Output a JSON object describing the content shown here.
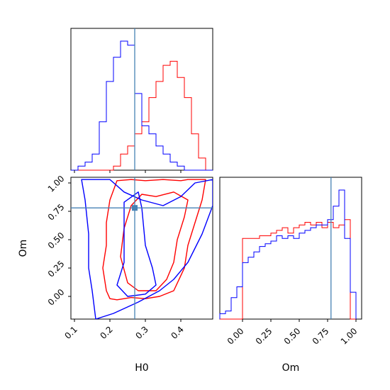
{
  "colors": {
    "series_red": "#ff0000",
    "series_blue": "#0000ff",
    "truth": "#4682b4",
    "axis": "#000000"
  },
  "chart_data": {
    "type": "corner",
    "parameters": [
      "H0",
      "Om"
    ],
    "truth": {
      "H0": 0.27,
      "Om": 0.78
    },
    "xlabel_h0": "H0",
    "xlabel_om": "Om",
    "ylabel_om": "Om",
    "h0_ticks": [
      "0.1",
      "0.2",
      "0.3",
      "0.4"
    ],
    "h0_tick_values": [
      0.1,
      0.2,
      0.3,
      0.4
    ],
    "om_ticks": [
      "0.00",
      "0.25",
      "0.50",
      "0.75",
      "1.00"
    ],
    "om_tick_values": [
      0.0,
      0.25,
      0.5,
      0.75,
      1.0
    ],
    "h0_range": [
      0.09,
      0.49
    ],
    "om_range": [
      -0.2,
      1.05
    ],
    "hist_h0": {
      "bin_edges": [
        0.09,
        0.11,
        0.13,
        0.15,
        0.17,
        0.19,
        0.21,
        0.23,
        0.25,
        0.27,
        0.29,
        0.31,
        0.33,
        0.35,
        0.37,
        0.39,
        0.41,
        0.43,
        0.45,
        0.47,
        0.49
      ],
      "series": [
        {
          "color": "red",
          "counts": [
            0,
            0,
            0,
            0,
            0,
            0,
            1,
            4,
            6,
            9,
            12,
            18,
            22,
            26,
            27,
            23,
            18,
            9,
            3,
            0
          ]
        },
        {
          "color": "blue",
          "counts": [
            0,
            1,
            2,
            4,
            12,
            22,
            28,
            32,
            31,
            19,
            11,
            9,
            6,
            4,
            2,
            1,
            0,
            0,
            0,
            0
          ]
        }
      ]
    },
    "hist_om": {
      "bin_edges": [
        -0.2,
        -0.15,
        -0.1,
        -0.05,
        0.0,
        0.05,
        0.1,
        0.15,
        0.2,
        0.25,
        0.3,
        0.35,
        0.4,
        0.45,
        0.5,
        0.55,
        0.6,
        0.65,
        0.7,
        0.75,
        0.8,
        0.85,
        0.9,
        0.95,
        1.0
      ],
      "series": [
        {
          "color": "red",
          "counts": [
            0,
            0,
            0,
            0,
            30,
            30,
            30,
            31,
            31,
            32,
            33,
            34,
            32,
            34,
            35,
            36,
            35,
            36,
            34,
            36,
            34,
            35,
            37,
            0
          ]
        },
        {
          "color": "blue",
          "counts": [
            2,
            3,
            8,
            12,
            21,
            23,
            25,
            27,
            28,
            29,
            31,
            30,
            31,
            30,
            32,
            33,
            34,
            35,
            35,
            37,
            42,
            48,
            30,
            10
          ]
        }
      ]
    },
    "contours_2d": [
      {
        "color": "red",
        "level": "outer",
        "points": [
          [
            0.2,
            -0.02
          ],
          [
            0.22,
            -0.03
          ],
          [
            0.26,
            -0.01
          ],
          [
            0.3,
            -0.02
          ],
          [
            0.34,
            0.0
          ],
          [
            0.38,
            0.05
          ],
          [
            0.41,
            0.25
          ],
          [
            0.42,
            0.45
          ],
          [
            0.44,
            0.65
          ],
          [
            0.46,
            0.85
          ],
          [
            0.47,
            1.03
          ],
          [
            0.42,
            1.03
          ],
          [
            0.4,
            1.02
          ],
          [
            0.35,
            1.03
          ],
          [
            0.3,
            1.02
          ],
          [
            0.26,
            1.03
          ],
          [
            0.22,
            1.02
          ],
          [
            0.2,
            0.85
          ],
          [
            0.19,
            0.65
          ],
          [
            0.19,
            0.45
          ],
          [
            0.18,
            0.25
          ],
          [
            0.19,
            0.05
          ]
        ]
      },
      {
        "color": "red",
        "level": "inner",
        "points": [
          [
            0.25,
            0.12
          ],
          [
            0.28,
            0.05
          ],
          [
            0.33,
            0.05
          ],
          [
            0.36,
            0.15
          ],
          [
            0.38,
            0.3
          ],
          [
            0.39,
            0.5
          ],
          [
            0.41,
            0.7
          ],
          [
            0.42,
            0.85
          ],
          [
            0.38,
            0.92
          ],
          [
            0.33,
            0.88
          ],
          [
            0.29,
            0.9
          ],
          [
            0.26,
            0.8
          ],
          [
            0.24,
            0.6
          ],
          [
            0.23,
            0.35
          ]
        ]
      },
      {
        "color": "blue",
        "level": "outer",
        "points": [
          [
            0.12,
            1.03
          ],
          [
            0.13,
            0.85
          ],
          [
            0.14,
            0.55
          ],
          [
            0.14,
            0.25
          ],
          [
            0.15,
            0.05
          ],
          [
            0.16,
            -0.2
          ],
          [
            0.21,
            -0.15
          ],
          [
            0.28,
            -0.05
          ],
          [
            0.34,
            0.05
          ],
          [
            0.38,
            0.15
          ],
          [
            0.42,
            0.3
          ],
          [
            0.46,
            0.55
          ],
          [
            0.49,
            0.8
          ],
          [
            0.49,
            1.03
          ],
          [
            0.44,
            1.0
          ],
          [
            0.4,
            0.88
          ],
          [
            0.35,
            0.8
          ],
          [
            0.29,
            0.85
          ],
          [
            0.24,
            0.92
          ],
          [
            0.2,
            1.03
          ]
        ]
      },
      {
        "color": "blue",
        "level": "inner",
        "points": [
          [
            0.22,
            0.1
          ],
          [
            0.24,
            0.3
          ],
          [
            0.24,
            0.6
          ],
          [
            0.24,
            0.83
          ],
          [
            0.28,
            0.92
          ],
          [
            0.29,
            0.78
          ],
          [
            0.3,
            0.45
          ],
          [
            0.32,
            0.25
          ],
          [
            0.33,
            0.1
          ],
          [
            0.3,
            0.02
          ],
          [
            0.25,
            0.0
          ]
        ]
      }
    ]
  }
}
